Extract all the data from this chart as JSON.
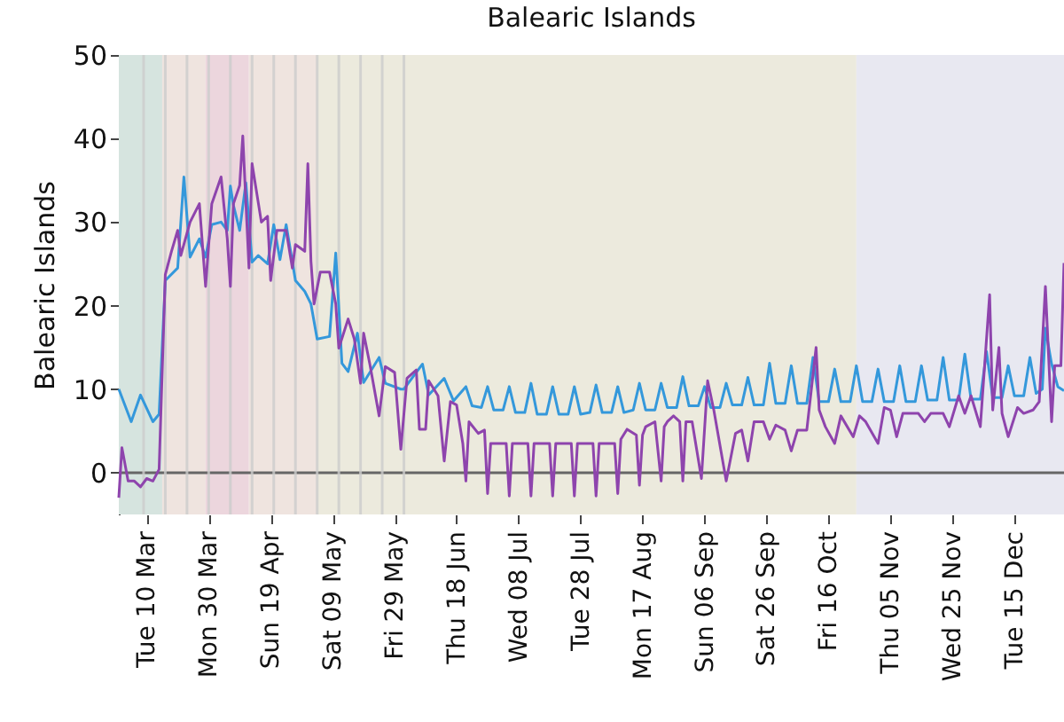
{
  "chart_data": {
    "type": "line",
    "title": "Balearic Islands",
    "ylabel": "Balearic Islands",
    "xlim": [
      "--03-01",
      "--12-31"
    ],
    "xticks": [
      {
        "value": "--03-10",
        "label": "Tue 10 Mar"
      },
      {
        "value": "--03-30",
        "label": "Mon 30 Mar"
      },
      {
        "value": "--04-19",
        "label": "Sun 19 Apr"
      },
      {
        "value": "--05-09",
        "label": "Sat 09 May"
      },
      {
        "value": "--05-29",
        "label": "Fri 29 May"
      },
      {
        "value": "--06-18",
        "label": "Thu 18 Jun"
      },
      {
        "value": "--07-08",
        "label": "Wed 08 Jul"
      },
      {
        "value": "--07-28",
        "label": "Tue 28 Jul"
      },
      {
        "value": "--08-17",
        "label": "Mon 17 Aug"
      },
      {
        "value": "--09-06",
        "label": "Sun 06 Sep"
      },
      {
        "value": "--09-26",
        "label": "Sat 26 Sep"
      },
      {
        "value": "--10-16",
        "label": "Fri 16 Oct"
      },
      {
        "value": "--11-05",
        "label": "Thu 05 Nov"
      },
      {
        "value": "--11-25",
        "label": "Wed 25 Nov"
      },
      {
        "value": "--12-15",
        "label": "Tue 15 Dec"
      }
    ],
    "ylim": [
      -5,
      50
    ],
    "yticks": [
      0,
      10,
      20,
      30,
      40,
      50
    ],
    "bands": [
      {
        "axis": "x",
        "from": "--03-01",
        "to": "--03-15",
        "color": "#d6e4df"
      },
      {
        "axis": "x",
        "from": "--03-15",
        "to": "--03-29",
        "color": "#efe4df"
      },
      {
        "axis": "x",
        "from": "--03-29",
        "to": "--04-12",
        "color": "#ecd6dd"
      },
      {
        "axis": "x",
        "from": "--04-12",
        "to": "--05-04",
        "color": "#efe4df"
      },
      {
        "axis": "x",
        "from": "--05-04",
        "to": "--10-25",
        "color": "#eceadd"
      },
      {
        "axis": "x",
        "from": "--10-25",
        "to": "--12-31",
        "color": "#e8e8f1"
      }
    ],
    "ref_lines": [
      {
        "axis": "y",
        "value": 0,
        "color": "#666666"
      },
      {
        "axis": "x",
        "value": "--03-09",
        "color": "#cccccc"
      },
      {
        "axis": "x",
        "value": "--03-16",
        "color": "#cccccc"
      },
      {
        "axis": "x",
        "value": "--03-23",
        "color": "#cccccc"
      },
      {
        "axis": "x",
        "value": "--03-30",
        "color": "#cccccc"
      },
      {
        "axis": "x",
        "value": "--04-06",
        "color": "#cccccc"
      },
      {
        "axis": "x",
        "value": "--04-13",
        "color": "#cccccc"
      },
      {
        "axis": "x",
        "value": "--04-20",
        "color": "#cccccc"
      },
      {
        "axis": "x",
        "value": "--04-27",
        "color": "#cccccc"
      },
      {
        "axis": "x",
        "value": "--05-04",
        "color": "#cccccc"
      },
      {
        "axis": "x",
        "value": "--05-11",
        "color": "#cccccc"
      },
      {
        "axis": "x",
        "value": "--05-18",
        "color": "#cccccc"
      },
      {
        "axis": "x",
        "value": "--05-25",
        "color": "#cccccc"
      },
      {
        "axis": "x",
        "value": "--06-01",
        "color": "#cccccc"
      }
    ],
    "series": [
      {
        "color": "#3498db",
        "x": [
          "--03-01",
          "--03-05",
          "--03-08",
          "--03-12",
          "--03-14",
          "--03-16",
          "--03-20",
          "--03-22",
          "--03-24",
          "--03-27",
          "--03-29",
          "--03-31",
          "--04-03",
          "--04-05",
          "--04-06",
          "--04-07",
          "--04-09",
          "--04-11",
          "--04-13",
          "--04-15",
          "--04-18",
          "--04-20",
          "--04-22",
          "--04-24",
          "--04-27",
          "--04-30",
          "--05-02",
          "--05-04",
          "--05-08",
          "--05-10",
          "--05-12",
          "--05-14",
          "--05-17",
          "--05-19",
          "--05-24",
          "--05-26",
          "--05-31",
          "--06-01",
          "--06-07",
          "--06-09",
          "--06-14",
          "--06-17",
          "--06-21",
          "--06-23",
          "--06-26",
          "--06-28",
          "--06-30",
          "--07-03",
          "--07-05",
          "--07-07",
          "--07-10",
          "--07-12",
          "--07-14",
          "--07-17",
          "--07-19",
          "--07-21",
          "--07-24",
          "--07-26",
          "--07-28",
          "--07-31",
          "--08-02",
          "--08-04",
          "--08-07",
          "--08-09",
          "--08-11",
          "--08-14",
          "--08-16",
          "--08-18",
          "--08-21",
          "--08-23",
          "--08-25",
          "--08-28",
          "--08-30",
          "--09-01",
          "--09-04",
          "--09-06",
          "--09-08",
          "--09-11",
          "--09-13",
          "--09-15",
          "--09-18",
          "--09-20",
          "--09-22",
          "--09-25",
          "--09-27",
          "--09-29",
          "--10-02",
          "--10-04",
          "--10-06",
          "--10-09",
          "--10-11",
          "--10-13",
          "--10-16",
          "--10-18",
          "--10-20",
          "--10-23",
          "--10-25",
          "--10-27",
          "--10-30",
          "--11-01",
          "--11-03",
          "--11-06",
          "--11-08",
          "--11-10",
          "--11-13",
          "--11-15",
          "--11-17",
          "--11-20",
          "--11-22",
          "--11-24",
          "--11-27",
          "--11-29",
          "--12-01",
          "--12-04",
          "--12-06",
          "--12-08",
          "--12-11",
          "--12-13",
          "--12-15",
          "--12-18",
          "--12-20",
          "--12-22",
          "--12-24",
          "--12-25",
          "--12-27",
          "--12-29",
          "--12-31"
        ],
        "values": [
          10,
          6.1,
          9.3,
          6.1,
          7,
          23,
          24.5,
          35.4,
          25.8,
          28,
          25.8,
          29.7,
          30,
          29,
          34.3,
          32,
          29,
          34.7,
          25.2,
          26,
          25,
          29.7,
          25.5,
          29.7,
          23,
          21.7,
          20.2,
          16,
          16.3,
          26.3,
          13.1,
          12.1,
          16.7,
          10.8,
          13.8,
          10.7,
          10,
          10,
          13,
          9.3,
          11.3,
          8.6,
          10.3,
          8,
          7.8,
          10.3,
          7.5,
          7.5,
          10.3,
          7.2,
          7.2,
          10.7,
          7,
          7,
          10.3,
          7,
          7,
          10.3,
          7,
          7.2,
          10.5,
          7.2,
          7.2,
          10.3,
          7.2,
          7.5,
          10.7,
          7.5,
          7.5,
          10.7,
          7.8,
          7.8,
          11.5,
          8,
          8,
          10.3,
          7.8,
          7.8,
          10.7,
          8.1,
          8.1,
          11.4,
          8.1,
          8.1,
          13.1,
          8.3,
          8.3,
          12.8,
          8.3,
          8.3,
          13.8,
          8.5,
          8.5,
          12.4,
          8.5,
          8.5,
          12.8,
          8.5,
          8.5,
          12.4,
          8.5,
          8.5,
          12.8,
          8.5,
          8.5,
          12.8,
          8.7,
          8.7,
          13.8,
          8.7,
          8.7,
          14.2,
          8.8,
          8.8,
          14.5,
          9,
          9,
          12.8,
          9.2,
          9.2,
          13.8,
          9.5,
          10,
          17.3,
          13,
          10.3,
          9.8
        ]
      },
      {
        "color": "#8e44ad",
        "x": [
          "--03-01",
          "--03-02",
          "--03-04",
          "--03-06",
          "--03-08",
          "--03-10",
          "--03-12",
          "--03-14",
          "--03-16",
          "--03-18",
          "--03-20",
          "--03-21",
          "--03-24",
          "--03-27",
          "--03-29",
          "--03-31",
          "--04-03",
          "--04-05",
          "--04-06",
          "--04-07",
          "--04-09",
          "--04-10",
          "--04-12",
          "--04-13",
          "--04-16",
          "--04-18",
          "--04-19",
          "--04-21",
          "--04-24",
          "--04-26",
          "--04-27",
          "--04-30",
          "--05-01",
          "--05-02",
          "--05-03",
          "--05-05",
          "--05-08",
          "--05-10",
          "--05-11",
          "--05-14",
          "--05-16",
          "--05-18",
          "--05-19",
          "--05-21",
          "--05-24",
          "--05-26",
          "--05-29",
          "--05-31",
          "--06-02",
          "--06-05",
          "--06-06",
          "--06-08",
          "--06-09",
          "--06-12",
          "--06-14",
          "--06-16",
          "--06-18",
          "--06-20",
          "--06-21",
          "--06-22",
          "--06-25",
          "--06-27",
          "--06-28",
          "--06-29",
          "--07-04",
          "--07-05",
          "--07-06",
          "--07-11",
          "--07-12",
          "--07-13",
          "--07-18",
          "--07-19",
          "--07-20",
          "--07-25",
          "--07-26",
          "--07-27",
          "--08-01",
          "--08-02",
          "--08-03",
          "--08-08",
          "--08-09",
          "--08-10",
          "--08-12",
          "--08-15",
          "--08-16",
          "--08-17",
          "--08-18",
          "--08-21",
          "--08-23",
          "--08-24",
          "--08-25",
          "--08-27",
          "--08-29",
          "--08-30",
          "--08-31",
          "--09-02",
          "--09-05",
          "--09-07",
          "--09-09",
          "--09-13",
          "--09-16",
          "--09-18",
          "--09-20",
          "--09-22",
          "--09-25",
          "--09-27",
          "--09-29",
          "--10-02",
          "--10-04",
          "--10-06",
          "--10-09",
          "--10-12",
          "--10-13",
          "--10-15",
          "--10-18",
          "--10-20",
          "--10-24",
          "--10-26",
          "--10-28",
          "--11-01",
          "--11-03",
          "--11-05",
          "--11-07",
          "--11-09",
          "--11-14",
          "--11-16",
          "--11-18",
          "--11-22",
          "--11-24",
          "--11-27",
          "--11-29",
          "--12-01",
          "--12-04",
          "--12-07",
          "--12-08",
          "--12-10",
          "--12-11",
          "--12-13",
          "--12-16",
          "--12-18",
          "--12-21",
          "--12-23",
          "--12-25",
          "--12-27",
          "--12-28",
          "--12-30",
          "--12-31"
        ],
        "values": [
          -3,
          3,
          -1,
          -1,
          -1.7,
          -0.7,
          -1,
          0.4,
          23.7,
          26.5,
          29,
          26,
          30,
          32.2,
          22.3,
          32.2,
          35.4,
          28,
          22.3,
          32.2,
          34.4,
          40.3,
          24.5,
          37,
          30,
          30.7,
          23,
          29,
          29,
          24.5,
          27.3,
          26.5,
          37,
          25.3,
          20.2,
          24,
          24,
          20.2,
          14.9,
          18.4,
          16,
          10.7,
          16.7,
          13,
          6.8,
          12.7,
          12,
          2.8,
          11.3,
          12.3,
          5.2,
          5.2,
          11,
          9.2,
          1.4,
          8.5,
          8.1,
          3.5,
          -1,
          6.1,
          4.7,
          5.1,
          -2.5,
          3.5,
          3.5,
          -2.8,
          3.5,
          3.5,
          -2.8,
          3.5,
          3.5,
          -2.8,
          3.5,
          3.5,
          -2.8,
          3.5,
          3.5,
          -2.8,
          3.5,
          3.5,
          -2.5,
          4,
          5.2,
          4.5,
          -1.5,
          4.5,
          5.5,
          6.1,
          -1,
          5.5,
          6.1,
          6.8,
          6.1,
          -1,
          6.1,
          6.1,
          -0.7,
          11,
          7.5,
          -1,
          4.7,
          5.1,
          1.4,
          6.1,
          6.1,
          4,
          5.7,
          5.1,
          2.6,
          5.1,
          5.1,
          15,
          7.5,
          5.5,
          3.5,
          6.8,
          4.3,
          6.8,
          6.1,
          3.5,
          7.8,
          7.5,
          4.3,
          7.1,
          7.1,
          6.1,
          7.1,
          7.1,
          5.5,
          9.2,
          7.1,
          9.2,
          5.5,
          21.3,
          7.5,
          15,
          7.1,
          4.3,
          7.8,
          7.1,
          7.5,
          8.5,
          22.3,
          6.1,
          12.8,
          12.8,
          25.1
        ]
      }
    ]
  }
}
